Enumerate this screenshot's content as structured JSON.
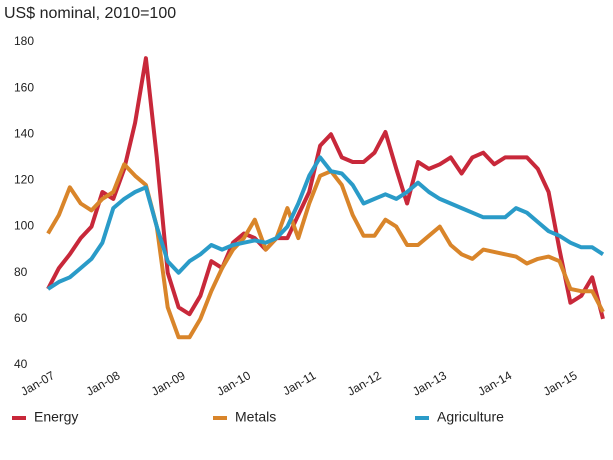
{
  "chart_data": {
    "type": "line",
    "title": "US$ nominal, 2010=100",
    "categories": [
      "Jan-07",
      null,
      null,
      null,
      null,
      null,
      "Jan-08",
      null,
      null,
      null,
      null,
      null,
      "Jan-09",
      null,
      null,
      null,
      null,
      null,
      "Jan-10",
      null,
      null,
      null,
      null,
      null,
      "Jan-11",
      null,
      null,
      null,
      null,
      null,
      "Jan-12",
      null,
      null,
      null,
      null,
      null,
      "Jan-13",
      null,
      null,
      null,
      null,
      null,
      "Jan-14",
      null,
      null,
      null,
      null,
      null,
      "Jan-15",
      null,
      null,
      null
    ],
    "series": [
      {
        "name": "Energy",
        "color": "#c8283a",
        "values": [
          73,
          82,
          88,
          95,
          100,
          115,
          112,
          125,
          145,
          173,
          130,
          80,
          65,
          62,
          70,
          85,
          82,
          93,
          97,
          95,
          90,
          95,
          95,
          105,
          115,
          135,
          140,
          130,
          128,
          128,
          132,
          141,
          125,
          110,
          128,
          125,
          127,
          130,
          123,
          130,
          132,
          127,
          130,
          130,
          130,
          125,
          115,
          90,
          67,
          70,
          78,
          60
        ]
      },
      {
        "name": "Metals",
        "color": "#d9852a",
        "values": [
          97,
          105,
          117,
          110,
          107,
          112,
          115,
          127,
          122,
          118,
          100,
          65,
          52,
          52,
          60,
          72,
          82,
          90,
          95,
          103,
          90,
          95,
          108,
          95,
          110,
          122,
          124,
          118,
          105,
          96,
          96,
          103,
          100,
          92,
          92,
          96,
          100,
          92,
          88,
          86,
          90,
          89,
          88,
          87,
          84,
          86,
          87,
          85,
          73,
          72,
          72,
          63
        ]
      },
      {
        "name": "Agriculture",
        "color": "#2a9bc8",
        "values": [
          73,
          76,
          78,
          82,
          86,
          93,
          108,
          112,
          115,
          117,
          100,
          85,
          80,
          85,
          88,
          92,
          90,
          92,
          93,
          94,
          93,
          95,
          100,
          110,
          122,
          130,
          124,
          123,
          118,
          110,
          112,
          114,
          112,
          115,
          119,
          115,
          112,
          110,
          108,
          106,
          104,
          104,
          104,
          108,
          106,
          102,
          98,
          96,
          93,
          91,
          91,
          88
        ]
      }
    ],
    "ylim": [
      40,
      180
    ],
    "yticks": [
      40,
      60,
      80,
      100,
      120,
      140,
      160,
      180
    ]
  }
}
